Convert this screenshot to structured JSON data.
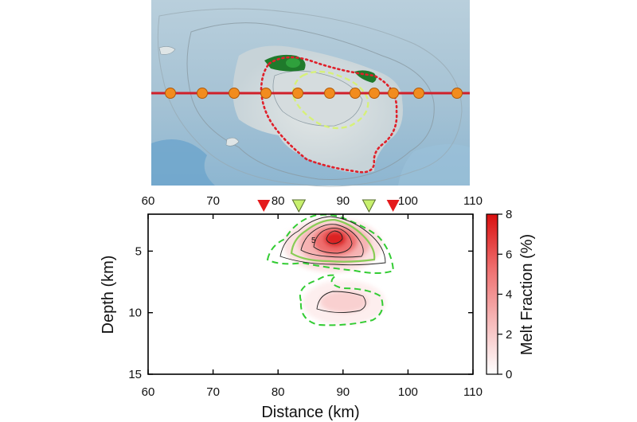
{
  "chart_data": {
    "type": "heatmap",
    "xlabel": "Distance (km)",
    "ylabel": "Depth (km)",
    "xlim": [
      60,
      110
    ],
    "ylim": [
      2,
      15
    ],
    "y_inverted": true,
    "x_ticks": [
      "60",
      "70",
      "80",
      "90",
      "100",
      "110"
    ],
    "y_ticks": [
      "5",
      "10",
      "15"
    ],
    "colorbar": {
      "label": "Melt Fraction (%)",
      "range": [
        0,
        8
      ],
      "ticks": [
        "0",
        "2",
        "4",
        "6",
        "8"
      ],
      "colors": [
        "#ffffff",
        "#f6b8b8",
        "#ee6d6d",
        "#d90f0f"
      ]
    },
    "contour_label": "5",
    "bodies": [
      {
        "name": "upper",
        "center_x": 88.5,
        "center_depth": 4.4,
        "peak_melt_percent": 8.0
      },
      {
        "name": "lower",
        "center_x": 89.5,
        "center_depth": 9.0,
        "peak_melt_percent": 1.6
      }
    ],
    "markers": [
      {
        "x": 77.8,
        "color": "#e41a1c",
        "kind": "caldera rim"
      },
      {
        "x": 83.2,
        "color": "#c8f06e",
        "kind": "inner boundary"
      },
      {
        "x": 94.0,
        "color": "#c8f06e",
        "kind": "inner boundary"
      },
      {
        "x": 97.7,
        "color": "#e41a1c",
        "kind": "caldera rim"
      }
    ],
    "map_profile_points_km": [
      63,
      68,
      73,
      78,
      83,
      88,
      92,
      95,
      98,
      102,
      108
    ],
    "colors": {
      "profile_line": "#d0202a",
      "station": "#f28c1e",
      "caldera_outline": "#e0202a",
      "inner_outline": "#d6f07a",
      "contour_dashed": "#33cc33",
      "sea": "#7fb3d3"
    }
  }
}
